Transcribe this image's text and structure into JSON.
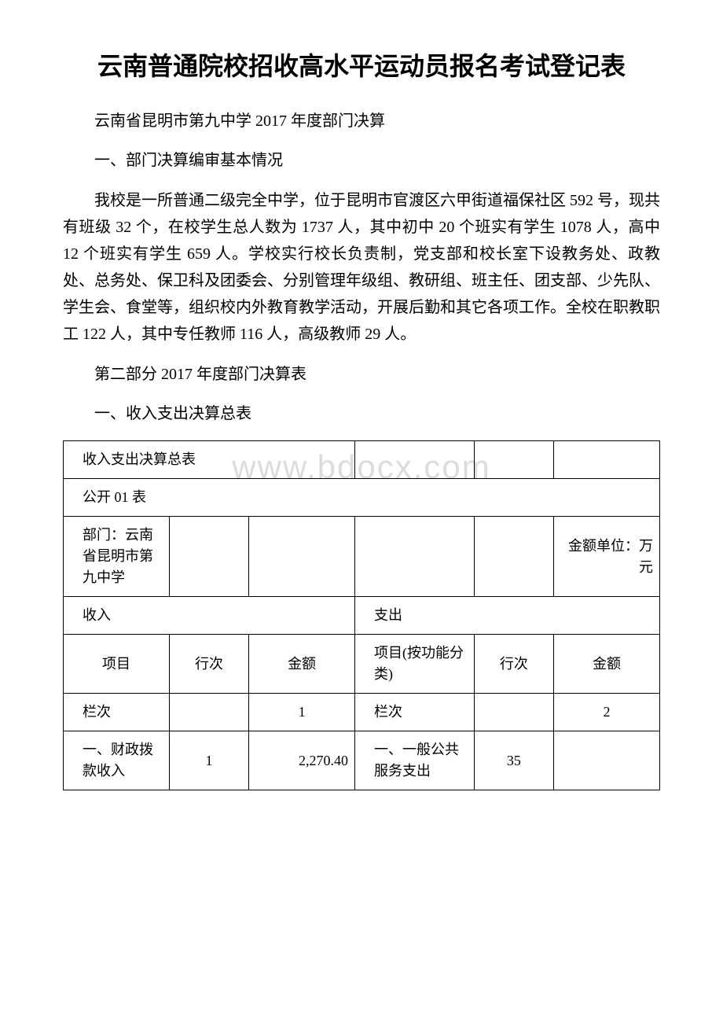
{
  "document": {
    "title": "云南普通院校招收高水平运动员报名考试登记表",
    "subtitle": "云南省昆明市第九中学 2017 年度部门决算",
    "section1_heading": "一、部门决算编审基本情况",
    "body_text": "我校是一所普通二级完全中学，位于昆明市官渡区六甲街道福保社区 592 号，现共有班级 32 个，在校学生总人数为 1737 人，其中初中 20 个班实有学生 1078 人，高中 12 个班实有学生 659 人。学校实行校长负责制，党支部和校长室下设教务处、政教处、总务处、保卫科及团委会、分别管理年级组、教研组、班主任、团支部、少先队、学生会、食堂等，组织校内外教育教学活动，开展后勤和其它各项工作。全校在职教职工 122 人，其中专任教师 116 人，高级教师 29 人。",
    "section2_heading": "第二部分 2017 年度部门决算表",
    "section2_sub": "一、收入支出决算总表",
    "watermark": "www.bdocx.com"
  },
  "table": {
    "header_title": "收入支出决算总表",
    "form_code": "公开 01 表",
    "dept_label": "部门：云南省昆明市第九中学",
    "unit_label": "金额单位：万元",
    "income_header": "收入",
    "expense_header": "支出",
    "col_project": "项目",
    "col_rownum": "行次",
    "col_amount": "金额",
    "col_project_func": "项目(按功能分类)",
    "col_rownum2": "行次",
    "col_amount2": "金额",
    "col_label": "栏次",
    "col_val1": "1",
    "col_label2": "栏次",
    "col_val2": "2",
    "row1_item": "一、财政拨款收入",
    "row1_num": "1",
    "row1_amount": "2,270.40",
    "row1_item2": "一、一般公共服务支出",
    "row1_num2": "35",
    "row1_amount2": ""
  },
  "styles": {
    "title_fontsize": 32,
    "body_fontsize": 20,
    "table_fontsize": 18,
    "text_color": "#000000",
    "background_color": "#ffffff",
    "watermark_color": "#dcdcdc",
    "border_color": "#000000"
  }
}
